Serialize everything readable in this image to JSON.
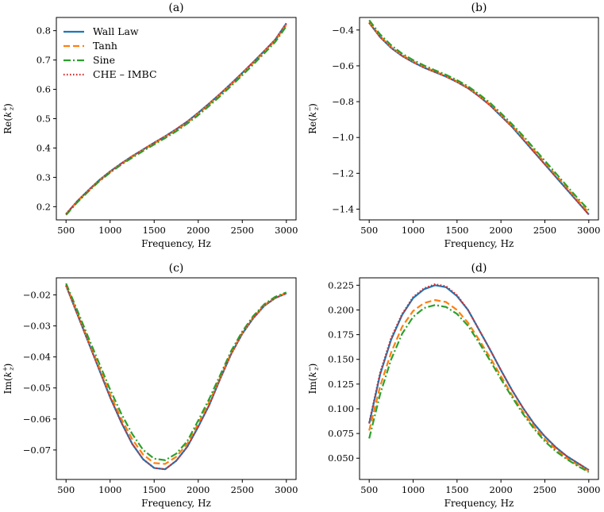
{
  "figure": {
    "xlabel": "Frequency, Hz"
  },
  "legend": [
    {
      "label": "Wall Law",
      "color": "#1f77b4",
      "dash": ""
    },
    {
      "label": "Tanh",
      "color": "#ff7f0e",
      "dash": "8,4"
    },
    {
      "label": "Sine",
      "color": "#2ca02c",
      "dash": "9,3,2,3"
    },
    {
      "label": "CHE – IMBC",
      "color": "#d62728",
      "dash": "1.5,2.5"
    }
  ],
  "chart_data": [
    {
      "id": "a",
      "title": "(a)",
      "type": "line",
      "ylabel_main": "Re",
      "ylabel_sup": "+",
      "x": [
        500,
        625,
        750,
        875,
        1000,
        1125,
        1250,
        1375,
        1500,
        1625,
        1750,
        1875,
        2000,
        2125,
        2250,
        2375,
        2500,
        2625,
        2750,
        2875,
        3000
      ],
      "xlim": [
        390,
        3110
      ],
      "ylim": [
        0.155,
        0.845
      ],
      "xticks": [
        "500",
        "1000",
        "1500",
        "2000",
        "2500",
        "3000"
      ],
      "yticks": [
        "0.2",
        "0.3",
        "0.4",
        "0.5",
        "0.6",
        "0.7",
        "0.8"
      ],
      "series": [
        {
          "name": "Wall Law",
          "values": [
            0.175,
            0.218,
            0.255,
            0.29,
            0.32,
            0.347,
            0.372,
            0.395,
            0.418,
            0.44,
            0.464,
            0.49,
            0.52,
            0.552,
            0.585,
            0.62,
            0.656,
            0.693,
            0.731,
            0.77,
            0.825
          ]
        },
        {
          "name": "Tanh",
          "values": [
            0.174,
            0.216,
            0.253,
            0.288,
            0.318,
            0.345,
            0.37,
            0.393,
            0.416,
            0.438,
            0.461,
            0.487,
            0.517,
            0.549,
            0.582,
            0.617,
            0.653,
            0.69,
            0.728,
            0.767,
            0.82
          ]
        },
        {
          "name": "Sine",
          "values": [
            0.172,
            0.214,
            0.251,
            0.286,
            0.316,
            0.343,
            0.367,
            0.39,
            0.412,
            0.434,
            0.457,
            0.483,
            0.512,
            0.544,
            0.577,
            0.612,
            0.648,
            0.685,
            0.723,
            0.762,
            0.815
          ]
        },
        {
          "name": "CHE – IMBC",
          "values": [
            0.175,
            0.218,
            0.255,
            0.29,
            0.32,
            0.347,
            0.372,
            0.395,
            0.418,
            0.44,
            0.464,
            0.49,
            0.52,
            0.552,
            0.585,
            0.62,
            0.656,
            0.693,
            0.731,
            0.77,
            0.825
          ]
        }
      ]
    },
    {
      "id": "b",
      "title": "(b)",
      "type": "line",
      "ylabel_main": "Re",
      "ylabel_sup": "−",
      "x": [
        500,
        625,
        750,
        875,
        1000,
        1125,
        1250,
        1375,
        1500,
        1625,
        1750,
        1875,
        2000,
        2125,
        2250,
        2375,
        2500,
        2625,
        2750,
        2875,
        3000
      ],
      "xlim": [
        390,
        3110
      ],
      "ylim": [
        -1.46,
        -0.33
      ],
      "xticks": [
        "500",
        "1000",
        "1500",
        "2000",
        "2500",
        "3000"
      ],
      "yticks": [
        "−0.4",
        "−0.6",
        "−0.8",
        "−1.0",
        "−1.2",
        "−1.4"
      ],
      "series": [
        {
          "name": "Wall Law",
          "values": [
            -0.36,
            -0.44,
            -0.5,
            -0.545,
            -0.58,
            -0.61,
            -0.635,
            -0.66,
            -0.69,
            -0.725,
            -0.77,
            -0.82,
            -0.88,
            -0.94,
            -1.01,
            -1.08,
            -1.15,
            -1.22,
            -1.29,
            -1.36,
            -1.43
          ]
        },
        {
          "name": "Tanh",
          "values": [
            -0.355,
            -0.435,
            -0.495,
            -0.54,
            -0.575,
            -0.605,
            -0.632,
            -0.657,
            -0.687,
            -0.722,
            -0.766,
            -0.815,
            -0.875,
            -0.935,
            -1.0,
            -1.07,
            -1.14,
            -1.21,
            -1.28,
            -1.35,
            -1.42
          ]
        },
        {
          "name": "Sine",
          "values": [
            -0.345,
            -0.425,
            -0.485,
            -0.532,
            -0.568,
            -0.598,
            -0.625,
            -0.65,
            -0.68,
            -0.714,
            -0.758,
            -0.806,
            -0.865,
            -0.925,
            -0.99,
            -1.06,
            -1.13,
            -1.2,
            -1.27,
            -1.34,
            -1.405
          ]
        },
        {
          "name": "CHE – IMBC",
          "values": [
            -0.36,
            -0.44,
            -0.5,
            -0.545,
            -0.58,
            -0.61,
            -0.635,
            -0.66,
            -0.69,
            -0.725,
            -0.77,
            -0.82,
            -0.88,
            -0.94,
            -1.01,
            -1.08,
            -1.15,
            -1.22,
            -1.29,
            -1.36,
            -1.43
          ]
        }
      ]
    },
    {
      "id": "c",
      "title": "(c)",
      "type": "line",
      "ylabel_main": "Im",
      "ylabel_sup": "+",
      "x": [
        500,
        625,
        750,
        875,
        1000,
        1125,
        1250,
        1375,
        1500,
        1625,
        1750,
        1875,
        2000,
        2125,
        2250,
        2375,
        2500,
        2625,
        2750,
        2875,
        3000
      ],
      "xlim": [
        390,
        3110
      ],
      "ylim": [
        -0.0795,
        -0.0145
      ],
      "xticks": [
        "500",
        "1000",
        "1500",
        "2000",
        "2500",
        "3000"
      ],
      "yticks": [
        "−0.02",
        "−0.03",
        "−0.04",
        "−0.05",
        "−0.06",
        "−0.07"
      ],
      "series": [
        {
          "name": "Wall Law",
          "values": [
            -0.017,
            -0.026,
            -0.035,
            -0.044,
            -0.053,
            -0.061,
            -0.068,
            -0.073,
            -0.0758,
            -0.0762,
            -0.0735,
            -0.069,
            -0.0625,
            -0.0555,
            -0.047,
            -0.039,
            -0.0325,
            -0.0275,
            -0.0235,
            -0.021,
            -0.0195
          ]
        },
        {
          "name": "Tanh",
          "values": [
            -0.0168,
            -0.0255,
            -0.0345,
            -0.0432,
            -0.052,
            -0.0598,
            -0.0665,
            -0.0715,
            -0.0742,
            -0.0745,
            -0.0722,
            -0.068,
            -0.0615,
            -0.0545,
            -0.0465,
            -0.0387,
            -0.0322,
            -0.0272,
            -0.0233,
            -0.0208,
            -0.0194
          ]
        },
        {
          "name": "Sine",
          "values": [
            -0.0163,
            -0.0248,
            -0.0335,
            -0.042,
            -0.0505,
            -0.0582,
            -0.0648,
            -0.07,
            -0.0728,
            -0.0733,
            -0.0712,
            -0.0672,
            -0.0605,
            -0.0535,
            -0.0458,
            -0.038,
            -0.0318,
            -0.0268,
            -0.023,
            -0.0206,
            -0.0192
          ]
        },
        {
          "name": "CHE – IMBC",
          "values": [
            -0.017,
            -0.026,
            -0.035,
            -0.044,
            -0.053,
            -0.061,
            -0.068,
            -0.073,
            -0.0758,
            -0.0762,
            -0.0735,
            -0.069,
            -0.0625,
            -0.0555,
            -0.047,
            -0.039,
            -0.0325,
            -0.0275,
            -0.0235,
            -0.021,
            -0.0195
          ]
        }
      ]
    },
    {
      "id": "d",
      "title": "(d)",
      "type": "line",
      "ylabel_main": "Im",
      "ylabel_sup": "−",
      "x": [
        500,
        625,
        750,
        875,
        1000,
        1125,
        1250,
        1375,
        1500,
        1625,
        1750,
        1875,
        2000,
        2125,
        2250,
        2375,
        2500,
        2625,
        2750,
        2875,
        3000
      ],
      "xlim": [
        390,
        3110
      ],
      "ylim": [
        0.0285,
        0.2325
      ],
      "xticks": [
        "500",
        "1000",
        "1500",
        "2000",
        "2500",
        "3000"
      ],
      "yticks": [
        "0.050",
        "0.075",
        "0.100",
        "0.125",
        "0.150",
        "0.175",
        "0.200",
        "0.225"
      ],
      "series": [
        {
          "name": "Wall Law",
          "values": [
            0.085,
            0.135,
            0.17,
            0.195,
            0.212,
            0.221,
            0.225,
            0.223,
            0.214,
            0.2,
            0.18,
            0.16,
            0.139,
            0.119,
            0.101,
            0.085,
            0.072,
            0.061,
            0.052,
            0.045,
            0.038
          ]
        },
        {
          "name": "Tanh",
          "values": [
            0.078,
            0.123,
            0.157,
            0.183,
            0.199,
            0.207,
            0.21,
            0.208,
            0.2,
            0.187,
            0.17,
            0.152,
            0.133,
            0.114,
            0.097,
            0.082,
            0.069,
            0.059,
            0.05,
            0.043,
            0.037
          ]
        },
        {
          "name": "Sine",
          "values": [
            0.07,
            0.115,
            0.15,
            0.176,
            0.193,
            0.202,
            0.205,
            0.203,
            0.196,
            0.184,
            0.167,
            0.149,
            0.13,
            0.112,
            0.095,
            0.08,
            0.067,
            0.057,
            0.049,
            0.042,
            0.036
          ]
        },
        {
          "name": "CHE – IMBC",
          "values": [
            0.086,
            0.137,
            0.172,
            0.196,
            0.213,
            0.222,
            0.226,
            0.224,
            0.215,
            0.2,
            0.18,
            0.16,
            0.139,
            0.119,
            0.101,
            0.085,
            0.072,
            0.061,
            0.052,
            0.045,
            0.038
          ]
        }
      ]
    }
  ]
}
